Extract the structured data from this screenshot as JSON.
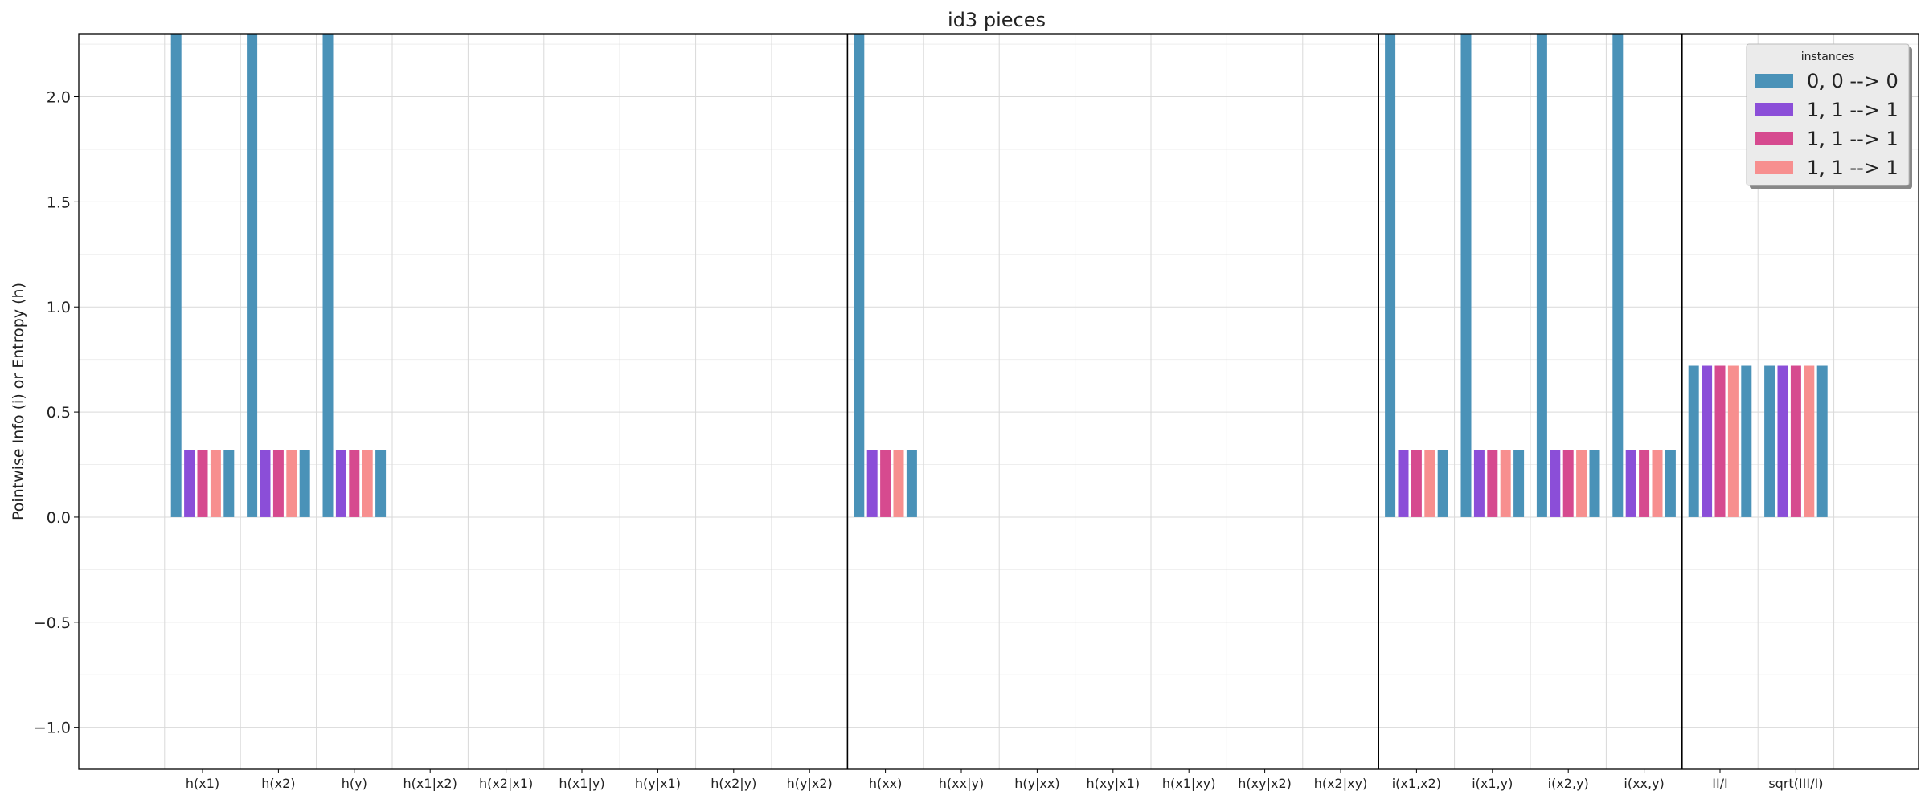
{
  "chart_data": {
    "type": "bar",
    "title": "id3 pieces",
    "xlabel": "",
    "ylabel": "Pointwise Info (i) or Entropy (h)",
    "ylim": [
      -1.2,
      2.3
    ],
    "yticks": [
      -1.0,
      -0.5,
      0.0,
      0.5,
      1.0,
      1.5,
      2.0
    ],
    "ytick_labels": [
      "−1.0",
      "−0.5",
      "0.0",
      "0.5",
      "1.0",
      "1.5",
      "2.0"
    ],
    "grid": true,
    "categories": [
      "h(x1)",
      "h(x2)",
      "h(y)",
      "h(x1|x2)",
      "h(x2|x1)",
      "h(x1|y)",
      "h(y|x1)",
      "h(x2|y)",
      "h(y|x2)",
      "h(xx)",
      "h(xx|y)",
      "h(y|xx)",
      "h(xy|x1)",
      "h(x1|xy)",
      "h(xy|x2)",
      "h(x2|xy)",
      "i(x1,x2)",
      "i(x1,y)",
      "i(x2,y)",
      "i(xx,y)",
      "II/I",
      "sqrt(III/I)"
    ],
    "group_separators_after": [
      "h(y|x2)",
      "h(x2|xy)",
      "i(xx,y)"
    ],
    "legend": {
      "title": "instances",
      "placement": "top-right"
    },
    "series": [
      {
        "name": "0, 0 --> 0",
        "color": "#4a92b8",
        "values": [
          2.3,
          2.3,
          2.3,
          0,
          0,
          0,
          0,
          0,
          0,
          2.3,
          0,
          0,
          0,
          0,
          0,
          0,
          2.3,
          2.3,
          2.3,
          2.3,
          0.72,
          0.72
        ]
      },
      {
        "name": "1, 1 --> 1",
        "color": "#8b4ed8",
        "values": [
          0.32,
          0.32,
          0.32,
          0,
          0,
          0,
          0,
          0,
          0,
          0.32,
          0,
          0,
          0,
          0,
          0,
          0,
          0.32,
          0.32,
          0.32,
          0.32,
          0.72,
          0.72
        ]
      },
      {
        "name": "1, 1 --> 1",
        "color": "#d64a8f",
        "values": [
          0.32,
          0.32,
          0.32,
          0,
          0,
          0,
          0,
          0,
          0,
          0.32,
          0,
          0,
          0,
          0,
          0,
          0,
          0.32,
          0.32,
          0.32,
          0.32,
          0.72,
          0.72
        ]
      },
      {
        "name": "1, 1 --> 1",
        "color": "#f78f8f",
        "values": [
          0.32,
          0.32,
          0.32,
          0,
          0,
          0,
          0,
          0,
          0,
          0.32,
          0,
          0,
          0,
          0,
          0,
          0,
          0.32,
          0.32,
          0.32,
          0.32,
          0.72,
          0.72
        ]
      },
      {
        "name": "",
        "color": "#4a92b8",
        "values": [
          0.32,
          0.32,
          0.32,
          0,
          0,
          0,
          0,
          0,
          0,
          0.32,
          0,
          0,
          0,
          0,
          0,
          0,
          0.32,
          0.32,
          0.32,
          0.32,
          0.72,
          0.72
        ]
      }
    ]
  }
}
